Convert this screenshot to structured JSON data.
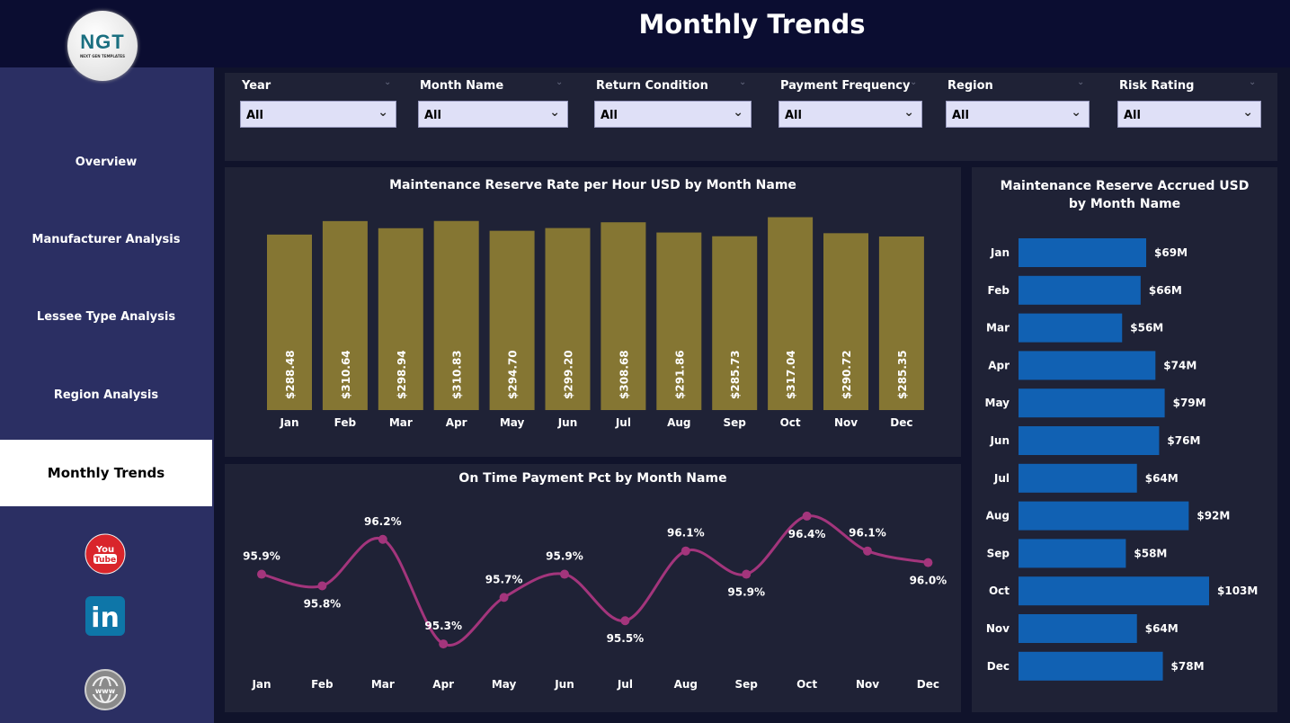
{
  "header": {
    "title": "Monthly Trends",
    "logo_text": "NGT",
    "logo_subtext": "NEXT GEN TEMPLATES"
  },
  "sidebar": {
    "items": [
      {
        "label": "Overview"
      },
      {
        "label": "Manufacturer Analysis"
      },
      {
        "label": "Lessee Type Analysis"
      },
      {
        "label": "Region Analysis"
      },
      {
        "label": "Monthly Trends",
        "active": true
      }
    ],
    "social": [
      "youtube-icon",
      "linkedin-icon",
      "globe-icon"
    ]
  },
  "filters": [
    {
      "label": "Year",
      "value": "All"
    },
    {
      "label": "Month Name",
      "value": "All"
    },
    {
      "label": "Return Condition",
      "value": "All"
    },
    {
      "label": "Payment Frequency",
      "value": "All"
    },
    {
      "label": "Region",
      "value": "All"
    },
    {
      "label": "Risk Rating",
      "value": "All"
    }
  ],
  "colors": {
    "bar": "#857633",
    "line": "#a3357c",
    "hbar": "#1161b3"
  },
  "chart_data": [
    {
      "type": "bar",
      "title": "Maintenance Reserve Rate per Hour USD by Month Name",
      "categories": [
        "Jan",
        "Feb",
        "Mar",
        "Apr",
        "May",
        "Jun",
        "Jul",
        "Aug",
        "Sep",
        "Oct",
        "Nov",
        "Dec"
      ],
      "values": [
        288.48,
        310.64,
        298.94,
        310.83,
        294.7,
        299.2,
        308.68,
        291.86,
        285.73,
        317.04,
        290.72,
        285.35
      ],
      "labels": [
        "$288.48",
        "$310.64",
        "$298.94",
        "$310.83",
        "$294.70",
        "$299.20",
        "$308.68",
        "$291.86",
        "$285.73",
        "$317.04",
        "$290.72",
        "$285.35"
      ],
      "ylim": [
        0,
        340
      ]
    },
    {
      "type": "line",
      "title": "On Time Payment Pct by Month Name",
      "categories": [
        "Jan",
        "Feb",
        "Mar",
        "Apr",
        "May",
        "Jun",
        "Jul",
        "Aug",
        "Sep",
        "Oct",
        "Nov",
        "Dec"
      ],
      "values": [
        95.9,
        95.8,
        96.2,
        95.3,
        95.7,
        95.9,
        95.5,
        96.1,
        95.9,
        96.4,
        96.1,
        96.0
      ],
      "labels": [
        "95.9%",
        "95.8%",
        "96.2%",
        "95.3%",
        "95.7%",
        "95.9%",
        "95.5%",
        "96.1%",
        "95.9%",
        "96.4%",
        "96.1%",
        "96.0%"
      ],
      "label_pos": [
        "above",
        "below",
        "above",
        "above",
        "above",
        "above",
        "below",
        "above",
        "below",
        "below",
        "above",
        "below"
      ],
      "ylim": [
        95.2,
        96.5
      ]
    },
    {
      "type": "bar",
      "orientation": "horizontal",
      "title": "Maintenance Reserve Accrued USD by Month Name",
      "categories": [
        "Jan",
        "Feb",
        "Mar",
        "Apr",
        "May",
        "Jun",
        "Jul",
        "Aug",
        "Sep",
        "Oct",
        "Nov",
        "Dec"
      ],
      "values": [
        69,
        66,
        56,
        74,
        79,
        76,
        64,
        92,
        58,
        103,
        64,
        78
      ],
      "labels": [
        "$69M",
        "$66M",
        "$56M",
        "$74M",
        "$79M",
        "$76M",
        "$64M",
        "$92M",
        "$58M",
        "$103M",
        "$64M",
        "$78M"
      ],
      "xlim": [
        0,
        103
      ]
    }
  ]
}
